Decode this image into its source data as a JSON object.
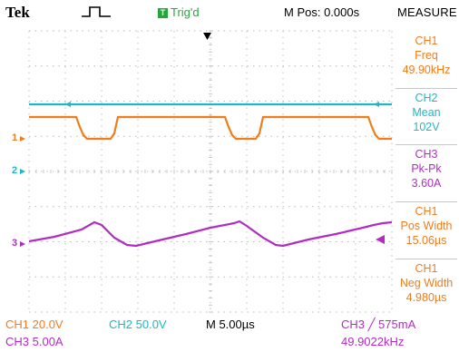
{
  "header": {
    "brand": "Tek",
    "trigger_status": "Trig'd",
    "trigger_badge": "T",
    "m_pos": "M Pos: 0.000s",
    "measure_title": "MEASURE"
  },
  "measurements": [
    {
      "channel": "CH1",
      "name": "Freq",
      "value": "49.90kHz",
      "color": "#f07c1c"
    },
    {
      "channel": "CH2",
      "name": "Mean",
      "value": "102V",
      "color": "#1fb7c3"
    },
    {
      "channel": "CH3",
      "name": "Pk-Pk",
      "value": "3.60A",
      "color": "#b22cc4"
    },
    {
      "channel": "CH1",
      "name": "Pos Width",
      "value": "15.06µs",
      "color": "#f07c1c"
    },
    {
      "channel": "CH1",
      "name": "Neg Width",
      "value": "4.980µs",
      "color": "#f07c1c"
    }
  ],
  "channel_markers": {
    "ch1": "1",
    "ch2": "2",
    "ch3": "3"
  },
  "bottom": {
    "ch1_scale": "CH1  20.0V",
    "ch2_scale": "CH2  50.0V",
    "timebase": "M 5.00µs",
    "ch3_scale": "CH3  5.00A",
    "trigger_setting": "CH3 ╱ 575mA",
    "trigger_freq": "49.9022kHz"
  },
  "colors": {
    "ch1": "#f07c1c",
    "ch2": "#1fb7c3",
    "ch3": "#b22cc4",
    "grid": "#b9b9b9",
    "trigger_green": "#22a83a"
  }
}
